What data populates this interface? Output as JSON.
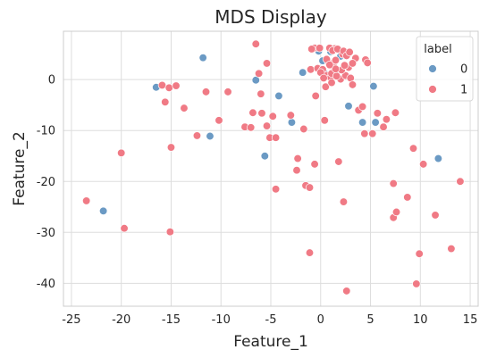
{
  "chart_data": {
    "type": "scatter",
    "title": "MDS Display",
    "xlabel": "Feature_1",
    "ylabel": "Feature_2",
    "xlim": [
      -25.8,
      15.8
    ],
    "ylim": [
      -44.5,
      9.5
    ],
    "xticks": [
      -25,
      -20,
      -15,
      -10,
      -5,
      0,
      5,
      10,
      15
    ],
    "yticks": [
      0,
      -10,
      -20,
      -30,
      -40
    ],
    "grid": true,
    "legend": {
      "title": "label",
      "placement": "top-right",
      "entries": [
        "0",
        "1"
      ]
    },
    "series": [
      {
        "name": "0",
        "color": "#6b9ac4",
        "points": [
          [
            -21.8,
            -25.8
          ],
          [
            -16.5,
            -1.5
          ],
          [
            -11.8,
            4.3
          ],
          [
            -11.1,
            -11.1
          ],
          [
            -6.5,
            -0.1
          ],
          [
            -5.6,
            -15.0
          ],
          [
            -4.2,
            -3.2
          ],
          [
            -2.9,
            -8.4
          ],
          [
            -1.8,
            1.4
          ],
          [
            -0.2,
            5.6
          ],
          [
            0.2,
            3.7
          ],
          [
            0.4,
            1.2
          ],
          [
            1.0,
            5.5
          ],
          [
            1.5,
            1.5
          ],
          [
            2.8,
            -5.2
          ],
          [
            4.2,
            -8.4
          ],
          [
            5.3,
            -1.3
          ],
          [
            5.5,
            -8.4
          ],
          [
            11.8,
            -15.5
          ],
          [
            2.0,
            4.6
          ]
        ]
      },
      {
        "name": "1",
        "color": "#f07a85",
        "points": [
          [
            -23.5,
            -23.8
          ],
          [
            -20.0,
            -14.4
          ],
          [
            -19.7,
            -29.2
          ],
          [
            -15.9,
            -1.1
          ],
          [
            -15.6,
            -4.4
          ],
          [
            -15.2,
            -1.6
          ],
          [
            -15.0,
            -13.3
          ],
          [
            -15.1,
            -29.9
          ],
          [
            -14.5,
            -1.2
          ],
          [
            -13.7,
            -5.6
          ],
          [
            -12.4,
            -11.0
          ],
          [
            -11.5,
            -2.4
          ],
          [
            -10.2,
            -8.0
          ],
          [
            -9.3,
            -2.4
          ],
          [
            -7.6,
            -9.3
          ],
          [
            -7.0,
            -9.4
          ],
          [
            -6.8,
            -6.5
          ],
          [
            -6.5,
            7.0
          ],
          [
            -6.2,
            1.2
          ],
          [
            -6.0,
            -2.8
          ],
          [
            -5.9,
            -6.6
          ],
          [
            -5.4,
            -9.1
          ],
          [
            -5.4,
            3.2
          ],
          [
            -5.1,
            -11.4
          ],
          [
            -4.8,
            -7.2
          ],
          [
            -4.5,
            -11.4
          ],
          [
            -4.5,
            -21.5
          ],
          [
            -3.0,
            -7.0
          ],
          [
            -2.3,
            -15.5
          ],
          [
            -2.4,
            -17.8
          ],
          [
            -1.7,
            -9.7
          ],
          [
            -1.5,
            -20.8
          ],
          [
            -1.1,
            -21.2
          ],
          [
            -1.1,
            -34.0
          ],
          [
            -1.0,
            2.0
          ],
          [
            -0.6,
            -16.6
          ],
          [
            -0.5,
            -3.2
          ],
          [
            -0.3,
            2.2
          ],
          [
            -0.6,
            6.2
          ],
          [
            0.2,
            2.0
          ],
          [
            0.4,
            -8.0
          ],
          [
            0.5,
            -1.4
          ],
          [
            0.6,
            0.8
          ],
          [
            0.8,
            3.3
          ],
          [
            1.0,
            0.4
          ],
          [
            1.1,
            -0.6
          ],
          [
            1.3,
            2.6
          ],
          [
            1.4,
            6.1
          ],
          [
            1.5,
            3.8
          ],
          [
            1.8,
            -16.1
          ],
          [
            2.0,
            0.1
          ],
          [
            2.2,
            5.0
          ],
          [
            2.3,
            -24.0
          ],
          [
            2.5,
            0.8
          ],
          [
            2.6,
            -41.5
          ],
          [
            2.8,
            2.4
          ],
          [
            3.0,
            0.3
          ],
          [
            3.2,
            -1.0
          ],
          [
            3.5,
            4.2
          ],
          [
            3.8,
            -6.0
          ],
          [
            4.2,
            -5.3
          ],
          [
            4.4,
            -10.6
          ],
          [
            4.5,
            3.9
          ],
          [
            4.7,
            3.3
          ],
          [
            5.2,
            -10.6
          ],
          [
            5.7,
            -6.6
          ],
          [
            6.3,
            -9.3
          ],
          [
            6.6,
            -7.8
          ],
          [
            7.3,
            -20.4
          ],
          [
            7.3,
            -27.1
          ],
          [
            7.6,
            -26.0
          ],
          [
            7.5,
            -6.5
          ],
          [
            8.7,
            -23.1
          ],
          [
            9.3,
            -13.5
          ],
          [
            9.6,
            -40.1
          ],
          [
            9.9,
            -34.2
          ],
          [
            10.3,
            -16.6
          ],
          [
            11.5,
            -26.6
          ],
          [
            13.1,
            -33.2
          ],
          [
            14.0,
            -20.0
          ],
          [
            -0.9,
            6.0
          ],
          [
            -0.1,
            6.2
          ],
          [
            0.6,
            4.0
          ],
          [
            0.9,
            6.2
          ],
          [
            1.2,
            5.7
          ],
          [
            1.7,
            6.0
          ],
          [
            2.3,
            5.6
          ],
          [
            2.6,
            4.7
          ],
          [
            2.9,
            5.4
          ],
          [
            0.0,
            1.4
          ],
          [
            1.1,
            1.2
          ],
          [
            1.6,
            0.7
          ],
          [
            2.1,
            1.9
          ],
          [
            0.3,
            0.3
          ],
          [
            1.5,
            2.1
          ],
          [
            0.9,
            2.9
          ],
          [
            2.4,
            2.8
          ],
          [
            3.2,
            3.2
          ]
        ]
      }
    ]
  }
}
